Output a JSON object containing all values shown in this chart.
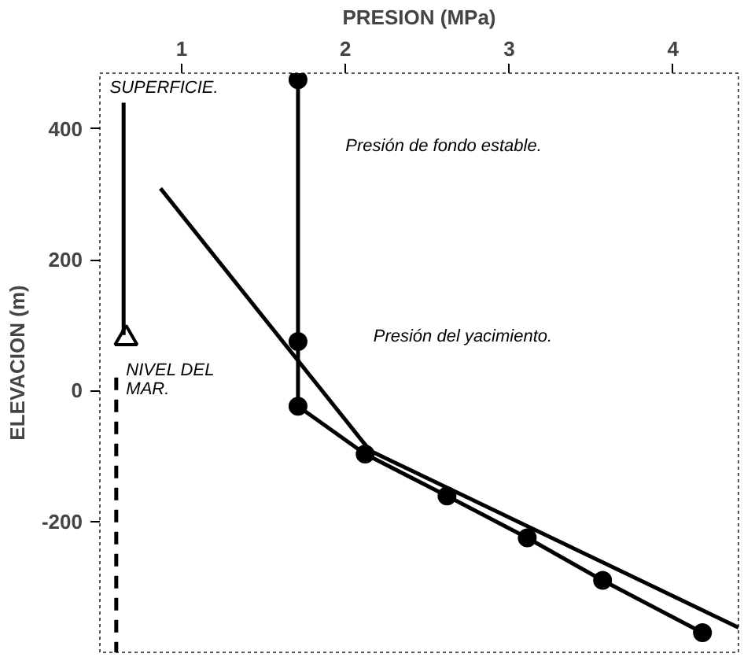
{
  "chart_data": {
    "type": "line",
    "xlabel": "PRESION (MPa)",
    "ylabel": "ELEVACION (m)",
    "xlim": [
      0.5,
      4.4
    ],
    "xticks": [
      1,
      2,
      3,
      4
    ],
    "ylim": [
      -400,
      485
    ],
    "yticks": [
      400,
      200,
      0,
      -200
    ],
    "grid": false,
    "series": [
      {
        "color": "#000000",
        "x": [
          1.71,
          1.71,
          1.71,
          2.12,
          2.62,
          3.11,
          3.57,
          4.18
        ],
        "values": [
          475,
          75,
          -24,
          -97,
          -161,
          -225,
          -290,
          -370
        ],
        "marker": "circle"
      },
      {
        "color": "#000000",
        "x": [
          0.87,
          2.15,
          4.4
        ],
        "values": [
          309,
          -92,
          -362
        ],
        "marker": "none"
      },
      {
        "color": "#000000",
        "x": [
          0.645,
          0.645
        ],
        "values": [
          440,
          85
        ],
        "marker": "none"
      },
      {
        "type": "scatter",
        "color": "#000000",
        "x": [
          0.66
        ],
        "values": [
          80
        ],
        "marker": "triangle"
      },
      {
        "color": "#000000",
        "x": [
          0.6,
          0.6
        ],
        "values": [
          20,
          -400
        ],
        "marker": "none",
        "line_style": "dashed"
      }
    ],
    "annotations": [
      "SUPERFICIE.",
      "Presión de fondo estable.",
      "Presión del yacimiento.",
      "NIVEL DEL\nMAR."
    ]
  }
}
